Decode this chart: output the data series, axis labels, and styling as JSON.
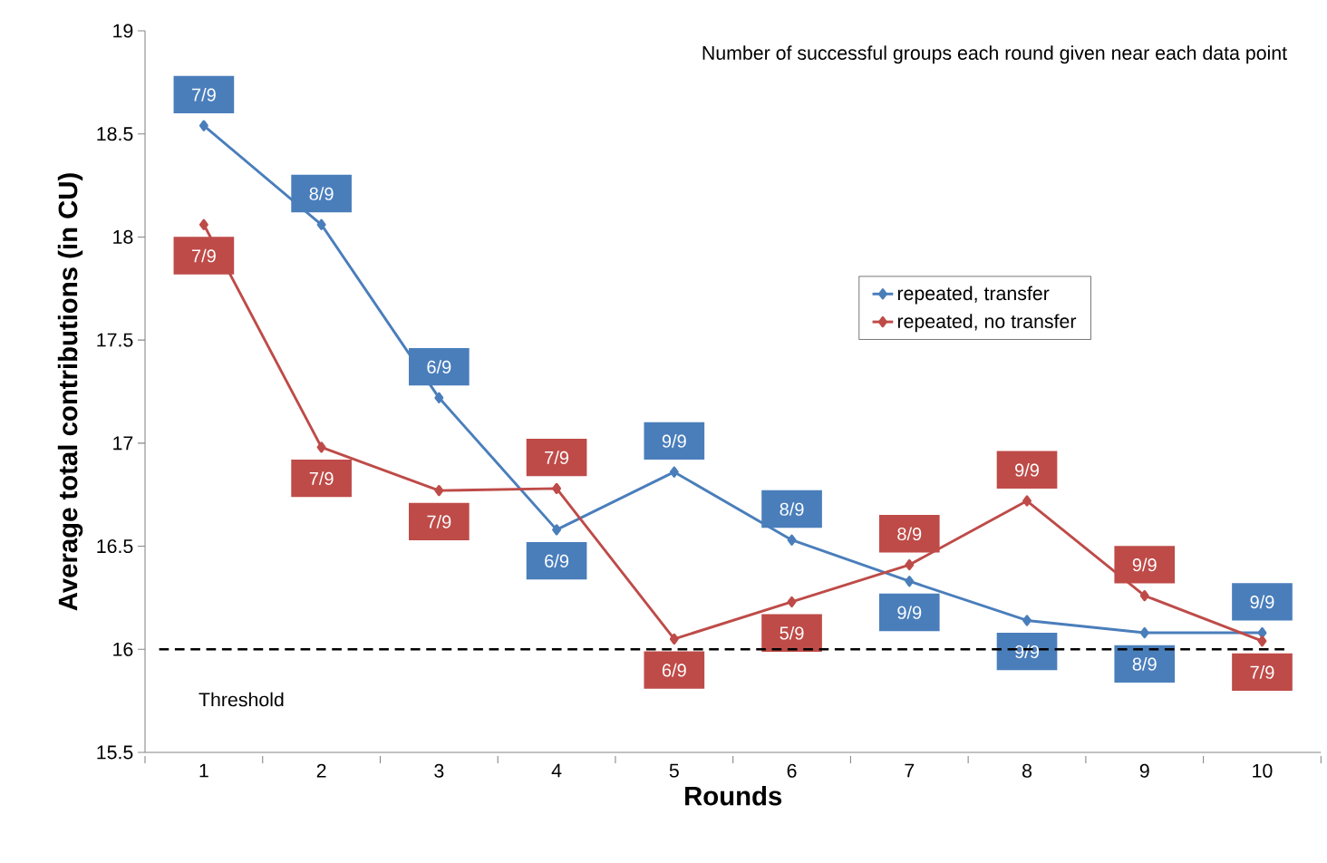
{
  "chart_data": {
    "type": "line",
    "xlabel": "Rounds",
    "ylabel": "Average total contributions  (in CU)",
    "categories": [
      "1",
      "2",
      "3",
      "4",
      "5",
      "6",
      "7",
      "8",
      "9",
      "10"
    ],
    "series": [
      {
        "name": "repeated, transfer",
        "color": "#4a7ebb",
        "values": [
          18.54,
          18.06,
          17.22,
          16.58,
          16.86,
          16.53,
          16.33,
          16.14,
          16.08,
          16.08
        ],
        "value_labels": [
          "7/9",
          "8/9",
          "6/9",
          "6/9",
          "9/9",
          "8/9",
          "9/9",
          "9/9",
          "8/9",
          "9/9"
        ]
      },
      {
        "name": "repeated, no transfer",
        "color": "#be4b48",
        "values": [
          18.06,
          16.98,
          16.77,
          16.78,
          16.05,
          16.23,
          16.41,
          16.72,
          16.26,
          16.04
        ],
        "value_labels": [
          "7/9",
          "7/9",
          "7/9",
          "7/9",
          "6/9",
          "5/9",
          "8/9",
          "9/9",
          "9/9",
          "7/9"
        ]
      }
    ],
    "ylim": [
      15.5,
      19
    ],
    "yticks": [
      15.5,
      16,
      16.5,
      17,
      17.5,
      18,
      18.5,
      19
    ],
    "ref_lines": [
      {
        "axis": "y",
        "value": 16,
        "label": "Threshold",
        "color": "#000000",
        "line_style": "dashed"
      }
    ],
    "annotations": [
      "Number of successful groups each round given near each data point"
    ],
    "marker": "diamond",
    "line_style": "solid",
    "legend": "top right",
    "grid": false
  }
}
